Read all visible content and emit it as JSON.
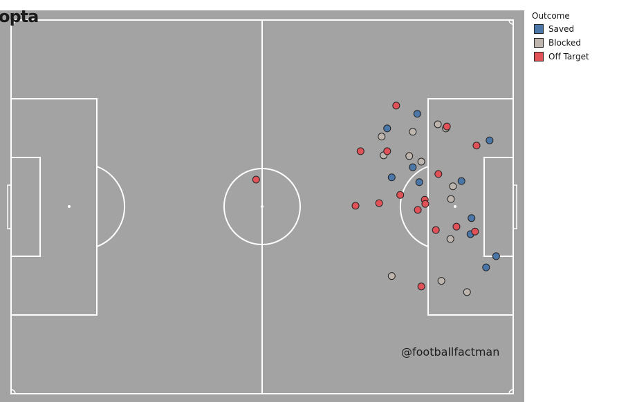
{
  "chart_data": {
    "type": "scatter",
    "pitch": "football pitch, attacking left to right, coordinates 0-100 (x along length, y from top touchline)",
    "xlim": [
      0,
      100
    ],
    "ylim": [
      0,
      100
    ],
    "grid": false,
    "legend": {
      "title": "Outcome",
      "placement": "right"
    },
    "series": [
      {
        "name": "Saved",
        "color": "#4a76a8",
        "points": [
          [
            80.9,
            25.1
          ],
          [
            74.9,
            29.0
          ],
          [
            95.3,
            32.2
          ],
          [
            80.0,
            39.4
          ],
          [
            75.8,
            42.1
          ],
          [
            81.3,
            43.4
          ],
          [
            89.7,
            43.1
          ],
          [
            91.7,
            53.0
          ],
          [
            91.5,
            57.3
          ],
          [
            96.6,
            63.2
          ],
          [
            94.6,
            66.2
          ]
        ]
      },
      {
        "name": "Blocked",
        "color": "#bdb5ae",
        "points": [
          [
            85.0,
            27.9
          ],
          [
            86.6,
            29.0
          ],
          [
            80.0,
            29.9
          ],
          [
            73.8,
            31.2
          ],
          [
            79.3,
            36.4
          ],
          [
            74.2,
            36.2
          ],
          [
            81.7,
            37.9
          ],
          [
            88.0,
            44.5
          ],
          [
            87.6,
            47.9
          ],
          [
            87.5,
            58.6
          ],
          [
            75.8,
            68.5
          ],
          [
            85.7,
            69.8
          ],
          [
            90.8,
            72.8
          ]
        ]
      },
      {
        "name": "Off Target",
        "color": "#e05258",
        "points": [
          [
            76.7,
            22.9
          ],
          [
            86.8,
            28.5
          ],
          [
            92.7,
            33.6
          ],
          [
            69.6,
            35.1
          ],
          [
            74.9,
            35.1
          ],
          [
            48.8,
            42.7
          ],
          [
            85.1,
            41.2
          ],
          [
            77.5,
            46.8
          ],
          [
            73.3,
            49.0
          ],
          [
            68.6,
            49.7
          ],
          [
            82.4,
            48.1
          ],
          [
            82.5,
            49.2
          ],
          [
            81.0,
            50.8
          ],
          [
            84.6,
            56.2
          ],
          [
            88.7,
            55.3
          ],
          [
            92.4,
            56.6
          ],
          [
            81.7,
            71.3
          ]
        ]
      }
    ]
  },
  "logo": "opta",
  "watermark": "@footballfactman",
  "colors": {
    "pitch": "#a3a3a3",
    "lines": "#ffffff"
  }
}
